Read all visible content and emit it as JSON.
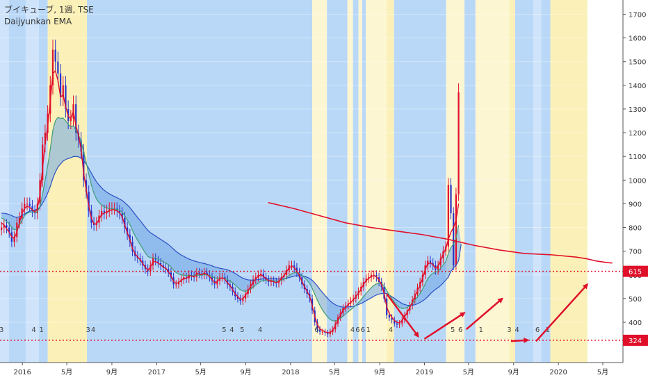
{
  "header": {
    "title": "ブイキューブ, 1週, TSE",
    "subtitle": "Daijyunkan EMA"
  },
  "colors": {
    "band_blue_light": "#cfe4fb",
    "band_blue": "#b9d8f7",
    "band_yellow": "#fbf1b8",
    "band_yellow_light": "#fdf6d2",
    "up": "#e0102b",
    "down": "#2832c8",
    "ema_short": "#e0102b",
    "ema_mid": "#3f9c75",
    "ema_long": "#2a4fc4",
    "cloud": "#6fa6e6",
    "ma_long": "#e0102b",
    "level": "#e0102b",
    "arrow": "#e0102b"
  },
  "chart_data": {
    "type": "candlestick",
    "title": "ブイキューブ, 1週, TSE",
    "subtitle": "Daijyunkan EMA",
    "y_axis": {
      "position": "right",
      "range": [
        230,
        1760
      ],
      "ticks": [
        400,
        500,
        600,
        700,
        800,
        900,
        1000,
        1100,
        1200,
        1300,
        1400,
        1500,
        1600,
        1700
      ]
    },
    "x_axis": {
      "ticks": [
        {
          "label": "2016",
          "date": "2016-01-01"
        },
        {
          "label": "5月",
          "date": "2016-05-01"
        },
        {
          "label": "9月",
          "date": "2016-09-01"
        },
        {
          "label": "2017",
          "date": "2017-01-01"
        },
        {
          "label": "5月",
          "date": "2017-05-01"
        },
        {
          "label": "9月",
          "date": "2017-09-01"
        },
        {
          "label": "2018",
          "date": "2018-01-01"
        },
        {
          "label": "5月",
          "date": "2018-05-01"
        },
        {
          "label": "9月",
          "date": "2018-09-01"
        },
        {
          "label": "2019",
          "date": "2019-01-01"
        },
        {
          "label": "5月",
          "date": "2019-05-01"
        },
        {
          "label": "9月",
          "date": "2019-09-01"
        },
        {
          "label": "2020",
          "date": "2020-01-01"
        },
        {
          "label": "5月",
          "date": "2020-05-01"
        }
      ],
      "range": [
        "2015-11-01",
        "2020-06-25"
      ]
    },
    "price_labels": [
      {
        "value": 615,
        "label": "615"
      },
      {
        "value": 324,
        "label": "324"
      }
    ],
    "horizontal_levels": [
      615,
      324
    ],
    "background_bands": [
      {
        "start": "2015-11-01",
        "end": "2015-11-25",
        "color": "band_blue_light"
      },
      {
        "start": "2015-11-25",
        "end": "2016-01-10",
        "color": "band_blue"
      },
      {
        "start": "2016-01-10",
        "end": "2016-02-15",
        "color": "band_blue_light"
      },
      {
        "start": "2016-02-15",
        "end": "2016-03-10",
        "color": "band_blue"
      },
      {
        "start": "2016-03-10",
        "end": "2016-06-25",
        "color": "band_yellow"
      },
      {
        "start": "2016-06-25",
        "end": "2018-03-01",
        "color": "band_blue"
      },
      {
        "start": "2018-03-01",
        "end": "2018-04-10",
        "color": "band_yellow_light"
      },
      {
        "start": "2018-04-10",
        "end": "2018-06-05",
        "color": "band_blue"
      },
      {
        "start": "2018-06-05",
        "end": "2018-06-20",
        "color": "band_yellow_light"
      },
      {
        "start": "2018-06-20",
        "end": "2018-07-05",
        "color": "band_blue"
      },
      {
        "start": "2018-07-05",
        "end": "2018-07-15",
        "color": "band_yellow_light"
      },
      {
        "start": "2018-07-15",
        "end": "2018-07-25",
        "color": "band_blue"
      },
      {
        "start": "2018-07-25",
        "end": "2018-09-20",
        "color": "band_yellow_light"
      },
      {
        "start": "2018-09-20",
        "end": "2018-10-10",
        "color": "band_yellow"
      },
      {
        "start": "2018-10-10",
        "end": "2019-03-01",
        "color": "band_blue"
      },
      {
        "start": "2019-03-01",
        "end": "2019-04-20",
        "color": "band_yellow_light"
      },
      {
        "start": "2019-04-20",
        "end": "2019-05-20",
        "color": "band_blue"
      },
      {
        "start": "2019-05-20",
        "end": "2019-08-20",
        "color": "band_yellow_light"
      },
      {
        "start": "2019-08-20",
        "end": "2019-09-05",
        "color": "band_yellow"
      },
      {
        "start": "2019-09-05",
        "end": "2019-10-25",
        "color": "band_blue"
      },
      {
        "start": "2019-10-25",
        "end": "2019-11-15",
        "color": "band_blue_light"
      },
      {
        "start": "2019-11-15",
        "end": "2019-12-10",
        "color": "band_blue"
      },
      {
        "start": "2019-12-10",
        "end": "2020-03-20",
        "color": "band_yellow"
      }
    ],
    "bottom_markers": [
      {
        "date": "2015-11-05",
        "label": "3"
      },
      {
        "date": "2016-02-01",
        "label": "4"
      },
      {
        "date": "2016-02-22",
        "label": "1"
      },
      {
        "date": "2016-06-28",
        "label": "3"
      },
      {
        "date": "2016-07-12",
        "label": "4"
      },
      {
        "date": "2017-07-04",
        "label": "5"
      },
      {
        "date": "2017-07-25",
        "label": "4"
      },
      {
        "date": "2017-08-22",
        "label": "5"
      },
      {
        "date": "2017-10-10",
        "label": "4"
      },
      {
        "date": "2018-03-13",
        "label": "6"
      },
      {
        "date": "2018-06-19",
        "label": "4"
      },
      {
        "date": "2018-07-03",
        "label": "6"
      },
      {
        "date": "2018-07-17",
        "label": "6"
      },
      {
        "date": "2018-08-01",
        "label": "1"
      },
      {
        "date": "2018-10-01",
        "label": "4"
      },
      {
        "date": "2019-03-19",
        "label": "5"
      },
      {
        "date": "2019-04-09",
        "label": "6"
      },
      {
        "date": "2019-06-04",
        "label": "1"
      },
      {
        "date": "2019-08-20",
        "label": "3"
      },
      {
        "date": "2019-09-10",
        "label": "4"
      },
      {
        "date": "2019-11-05",
        "label": "6"
      },
      {
        "date": "2019-12-03",
        "label": "1"
      }
    ],
    "candles_weekly": {
      "start_date": "2015-11-05",
      "interval_days": 7,
      "closes": [
        800,
        810,
        800,
        780,
        740,
        760,
        820,
        840,
        880,
        900,
        900,
        890,
        870,
        860,
        900,
        1000,
        1150,
        1200,
        1280,
        1400,
        1550,
        1500,
        1450,
        1350,
        1400,
        1300,
        1250,
        1260,
        1320,
        1200,
        1170,
        1120,
        1000,
        950,
        870,
        820,
        810,
        820,
        850,
        870,
        860,
        870,
        880,
        880,
        880,
        870,
        860,
        840,
        800,
        770,
        740,
        700,
        680,
        670,
        660,
        640,
        625,
        615,
        640,
        670,
        660,
        650,
        640,
        630,
        625,
        610,
        590,
        560,
        560,
        570,
        580,
        590,
        585,
        600,
        595,
        590,
        610,
        605,
        600,
        610,
        600,
        590,
        575,
        560,
        575,
        590,
        590,
        580,
        560,
        550,
        530,
        510,
        500,
        490,
        500,
        520,
        540,
        560,
        580,
        590,
        600,
        605,
        590,
        580,
        570,
        575,
        570,
        565,
        575,
        590,
        600,
        620,
        640,
        640,
        630,
        610,
        590,
        560,
        540,
        520,
        500,
        450,
        400,
        370,
        360,
        360,
        355,
        350,
        360,
        370,
        395,
        420,
        440,
        460,
        470,
        480,
        490,
        500,
        515,
        530,
        550,
        570,
        585,
        590,
        600,
        600,
        590,
        570,
        550,
        500,
        430,
        420,
        410,
        395,
        390,
        395,
        410,
        430,
        450,
        470,
        495,
        520,
        545,
        570,
        600,
        640,
        660,
        650,
        640,
        620,
        640,
        670,
        700,
        720,
        980,
        860,
        640,
        940,
        1370
      ]
    },
    "ema_series": [
      {
        "name": "ema_short",
        "label": "",
        "values": [
          820,
          810,
          795,
          780,
          760,
          755,
          780,
          820,
          860,
          880,
          890,
          885,
          875,
          865,
          880,
          940,
          1050,
          1150,
          1230,
          1330,
          1450,
          1460,
          1420,
          1350,
          1360,
          1310,
          1270,
          1260,
          1290,
          1230,
          1190,
          1130,
          1030,
          960,
          890,
          840,
          815,
          815,
          835,
          855,
          860,
          865,
          870,
          875,
          875,
          870,
          862,
          845,
          810,
          778,
          748,
          712,
          690,
          675,
          665,
          648,
          632,
          620,
          632,
          655,
          656,
          650,
          642,
          633,
          627,
          614,
          596,
          572,
          564,
          568,
          577,
          586,
          585,
          596,
          595,
          591,
          605,
          604,
          601,
          607,
          602,
          593,
          580,
          567,
          572,
          584,
          587,
          581,
          566,
          555,
          538,
          520,
          508,
          497,
          500,
          514,
          532,
          551,
          570,
          583,
          594,
          601,
          594,
          584,
          575,
          575,
          571,
          567,
          573,
          585,
          596,
          613,
          630,
          636,
          631,
          616,
          598,
          572,
          550,
          530,
          510,
          470,
          425,
          390,
          372,
          365,
          360,
          356,
          358,
          366,
          386,
          410,
          430,
          450,
          463,
          474,
          485,
          495,
          508,
          522,
          540,
          560,
          576,
          585,
          594,
          597,
          592,
          578,
          560,
          522,
          465,
          437,
          422,
          408,
          399,
          398,
          408,
          424,
          442,
          462,
          485,
          510,
          533,
          557,
          586,
          622,
          648,
          650,
          643,
          628,
          637,
          660,
          688,
          710,
          750,
          780,
          800,
          830,
          900
        ]
      },
      {
        "name": "ema_mid",
        "label": "",
        "values": [
          840,
          835,
          825,
          815,
          800,
          790,
          795,
          810,
          830,
          850,
          860,
          865,
          865,
          862,
          866,
          890,
          940,
          1000,
          1060,
          1130,
          1210,
          1250,
          1265,
          1260,
          1262,
          1250,
          1235,
          1225,
          1230,
          1210,
          1190,
          1165,
          1120,
          1075,
          1025,
          980,
          945,
          920,
          905,
          895,
          887,
          882,
          880,
          879,
          878,
          876,
          872,
          864,
          850,
          832,
          812,
          788,
          766,
          746,
          728,
          710,
          693,
          678,
          672,
          672,
          670,
          666,
          661,
          655,
          650,
          643,
          633,
          620,
          610,
          603,
          600,
          599,
          597,
          598,
          597,
          596,
          598,
          599,
          599,
          601,
          600,
          598,
          593,
          587,
          585,
          586,
          586,
          585,
          580,
          575,
          566,
          557,
          547,
          537,
          532,
          531,
          534,
          540,
          548,
          557,
          565,
          573,
          576,
          577,
          576,
          576,
          575,
          573,
          574,
          577,
          581,
          589,
          598,
          605,
          609,
          609,
          606,
          598,
          588,
          577,
          564,
          543,
          518,
          493,
          471,
          452,
          436,
          422,
          412,
          406,
          405,
          410,
          417,
          426,
          435,
          444,
          453,
          462,
          472,
          483,
          495,
          509,
          522,
          534,
          546,
          556,
          562,
          564,
          563,
          554,
          534,
          516,
          500,
          485,
          472,
          462,
          458,
          459,
          463,
          470,
          480,
          493,
          507,
          522,
          540,
          562,
          584,
          598,
          607,
          611,
          617,
          628,
          642,
          656,
          690,
          715,
          730,
          755,
          810
        ]
      },
      {
        "name": "ema_long",
        "label": "",
        "values": [
          860,
          860,
          858,
          855,
          850,
          845,
          843,
          845,
          850,
          857,
          864,
          869,
          872,
          874,
          877,
          886,
          902,
          922,
          945,
          973,
          1007,
          1034,
          1055,
          1068,
          1080,
          1087,
          1091,
          1094,
          1099,
          1100,
          1098,
          1093,
          1082,
          1067,
          1049,
          1029,
          1010,
          993,
          979,
          967,
          957,
          949,
          942,
          936,
          931,
          926,
          920,
          914,
          905,
          895,
          884,
          870,
          856,
          842,
          829,
          815,
          801,
          788,
          778,
          771,
          764,
          757,
          750,
          743,
          736,
          728,
          719,
          709,
          699,
          691,
          684,
          678,
          672,
          667,
          663,
          659,
          656,
          653,
          650,
          648,
          645,
          642,
          638,
          634,
          631,
          628,
          626,
          624,
          621,
          617,
          612,
          606,
          599,
          592,
          586,
          582,
          579,
          578,
          578,
          579,
          580,
          582,
          583,
          584,
          584,
          584,
          584,
          583,
          583,
          583,
          584,
          586,
          589,
          592,
          595,
          597,
          597,
          596,
          594,
          590,
          585,
          577,
          566,
          553,
          539,
          526,
          513,
          501,
          490,
          481,
          474,
          469,
          466,
          464,
          464,
          465,
          466,
          468,
          471,
          475,
          479,
          485,
          491,
          497,
          503,
          510,
          515,
          519,
          521,
          523,
          521,
          515,
          508,
          501,
          493,
          486,
          479,
          475,
          472,
          471,
          472,
          474,
          478,
          484,
          490,
          498,
          508,
          520,
          530,
          539,
          546,
          555,
          566,
          578,
          590,
          615,
          630,
          640,
          660,
          730
        ]
      }
    ],
    "long_ma": {
      "label": "",
      "start_date": "2017-11-01",
      "points": [
        [
          0,
          905
        ],
        [
          10,
          880
        ],
        [
          20,
          850
        ],
        [
          30,
          820
        ],
        [
          40,
          800
        ],
        [
          50,
          785
        ],
        [
          60,
          770
        ],
        [
          70,
          750
        ],
        [
          80,
          725
        ],
        [
          90,
          705
        ],
        [
          100,
          690
        ],
        [
          110,
          685
        ],
        [
          120,
          675
        ],
        [
          124,
          668
        ],
        [
          128,
          658
        ],
        [
          132,
          652
        ],
        [
          134,
          650
        ]
      ]
    },
    "annotations": [
      {
        "type": "arrow",
        "from": [
          "2018-09-20",
          520
        ],
        "to": [
          "2018-12-15",
          340
        ]
      },
      {
        "type": "arrow",
        "from": [
          "2019-01-01",
          330
        ],
        "to": [
          "2019-04-20",
          440
        ]
      },
      {
        "type": "arrow",
        "from": [
          "2019-04-25",
          370
        ],
        "to": [
          "2019-08-01",
          500
        ]
      },
      {
        "type": "arrow",
        "from": [
          "2019-08-25",
          320
        ],
        "to": [
          "2019-10-10",
          325
        ]
      },
      {
        "type": "arrow",
        "from": [
          "2019-11-01",
          320
        ],
        "to": [
          "2020-03-20",
          560
        ]
      }
    ]
  }
}
